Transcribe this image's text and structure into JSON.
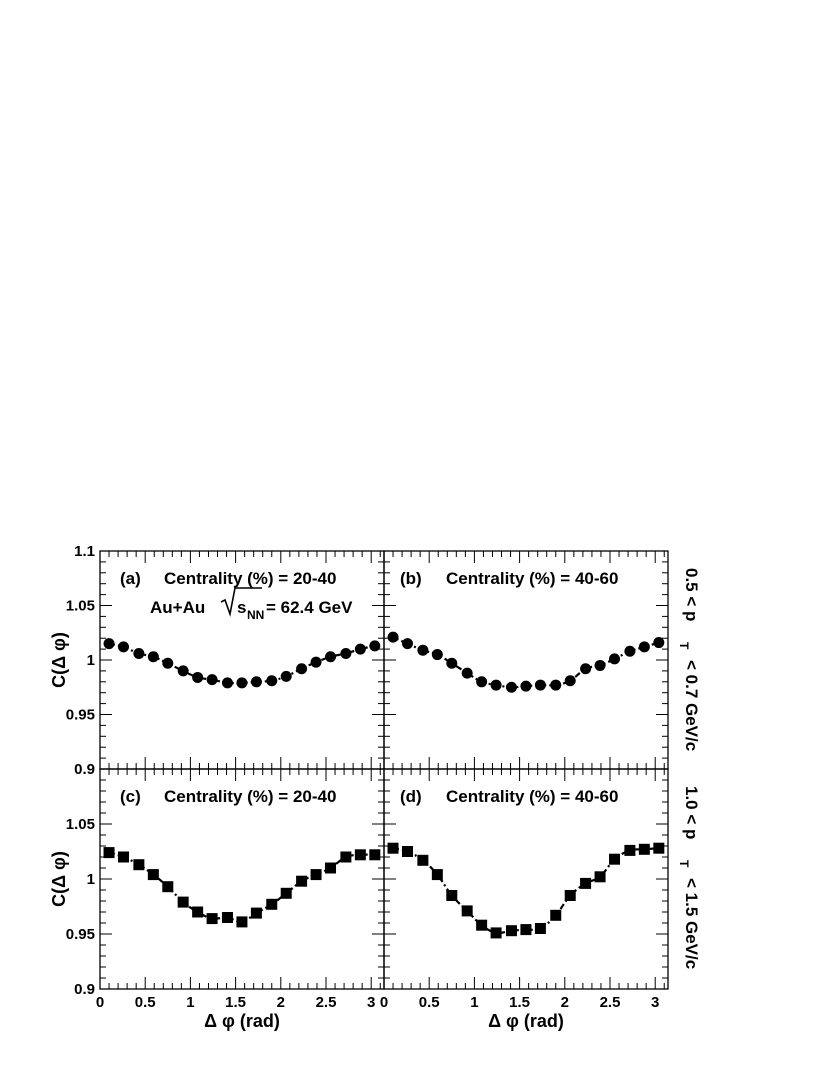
{
  "figure": {
    "collision_label": "Au+Au",
    "energy_label": "= 62.4 GeV",
    "sqrt_s": "s",
    "sqrt_sub": "NN",
    "row_labels": [
      "0.5 < p",
      "1.0 < p"
    ],
    "row_label_sub": "T",
    "row_label_tail": [
      "< 0.7 GeV/c",
      "< 1.5 GeV/c"
    ]
  },
  "chart_data": [
    {
      "type": "scatter",
      "panel": "(a)",
      "title": "Centrality (%) = 20-40",
      "marker": "circle",
      "xlabel": "",
      "ylabel": "C(Δ φ)",
      "xlim": [
        0,
        3.14159
      ],
      "ylim": [
        0.9,
        1.1
      ],
      "yticks": [
        "0.9",
        "0.95",
        "1",
        "1.05",
        "1.1"
      ],
      "xticks": [],
      "x": [
        0.1,
        0.26,
        0.43,
        0.59,
        0.75,
        0.92,
        1.08,
        1.24,
        1.41,
        1.57,
        1.73,
        1.9,
        2.06,
        2.23,
        2.39,
        2.55,
        2.72,
        2.88,
        3.04
      ],
      "y": [
        1.015,
        1.012,
        1.006,
        1.003,
        0.997,
        0.99,
        0.984,
        0.982,
        0.979,
        0.979,
        0.98,
        0.981,
        0.985,
        0.992,
        0.998,
        1.003,
        1.006,
        1.01,
        1.013
      ]
    },
    {
      "type": "scatter",
      "panel": "(b)",
      "title": "Centrality (%) = 40-60",
      "marker": "circle",
      "xlabel": "",
      "ylabel": "",
      "xlim": [
        0,
        3.14159
      ],
      "ylim": [
        0.9,
        1.1
      ],
      "yticks": [],
      "xticks": [],
      "x": [
        0.1,
        0.26,
        0.43,
        0.59,
        0.75,
        0.92,
        1.08,
        1.24,
        1.41,
        1.57,
        1.73,
        1.9,
        2.06,
        2.23,
        2.39,
        2.55,
        2.72,
        2.88,
        3.04
      ],
      "y": [
        1.021,
        1.015,
        1.009,
        1.005,
        0.997,
        0.988,
        0.98,
        0.977,
        0.975,
        0.976,
        0.977,
        0.977,
        0.981,
        0.992,
        0.995,
        1.001,
        1.008,
        1.012,
        1.016
      ]
    },
    {
      "type": "scatter",
      "panel": "(c)",
      "title": "Centrality (%) = 20-40",
      "marker": "square",
      "xlabel": "Δ φ (rad)",
      "ylabel": "C(Δ φ)",
      "xlim": [
        0,
        3.14159
      ],
      "ylim": [
        0.9,
        1.1
      ],
      "yticks": [
        "0.9",
        "0.95",
        "1",
        "1.05"
      ],
      "xticks": [
        "0",
        "0.5",
        "1",
        "1.5",
        "2",
        "2.5",
        "3"
      ],
      "x": [
        0.1,
        0.26,
        0.43,
        0.59,
        0.75,
        0.92,
        1.08,
        1.24,
        1.41,
        1.57,
        1.73,
        1.9,
        2.06,
        2.23,
        2.39,
        2.55,
        2.72,
        2.88,
        3.04
      ],
      "y": [
        1.024,
        1.02,
        1.013,
        1.004,
        0.993,
        0.979,
        0.97,
        0.964,
        0.965,
        0.961,
        0.969,
        0.977,
        0.987,
        0.998,
        1.004,
        1.01,
        1.02,
        1.022,
        1.022
      ]
    },
    {
      "type": "scatter",
      "panel": "(d)",
      "title": "Centrality (%) = 40-60",
      "marker": "square",
      "xlabel": "Δ φ (rad)",
      "ylabel": "",
      "xlim": [
        0,
        3.14159
      ],
      "ylim": [
        0.9,
        1.1
      ],
      "yticks": [],
      "xticks": [
        "0",
        "0.5",
        "1",
        "1.5",
        "2",
        "2.5",
        "3"
      ],
      "x": [
        0.1,
        0.26,
        0.43,
        0.59,
        0.75,
        0.92,
        1.08,
        1.24,
        1.41,
        1.57,
        1.73,
        1.9,
        2.06,
        2.23,
        2.39,
        2.55,
        2.72,
        2.88,
        3.04
      ],
      "y": [
        1.028,
        1.025,
        1.017,
        1.004,
        0.985,
        0.971,
        0.958,
        0.951,
        0.953,
        0.954,
        0.955,
        0.967,
        0.985,
        0.996,
        1.002,
        1.018,
        1.026,
        1.027,
        1.028
      ]
    }
  ]
}
